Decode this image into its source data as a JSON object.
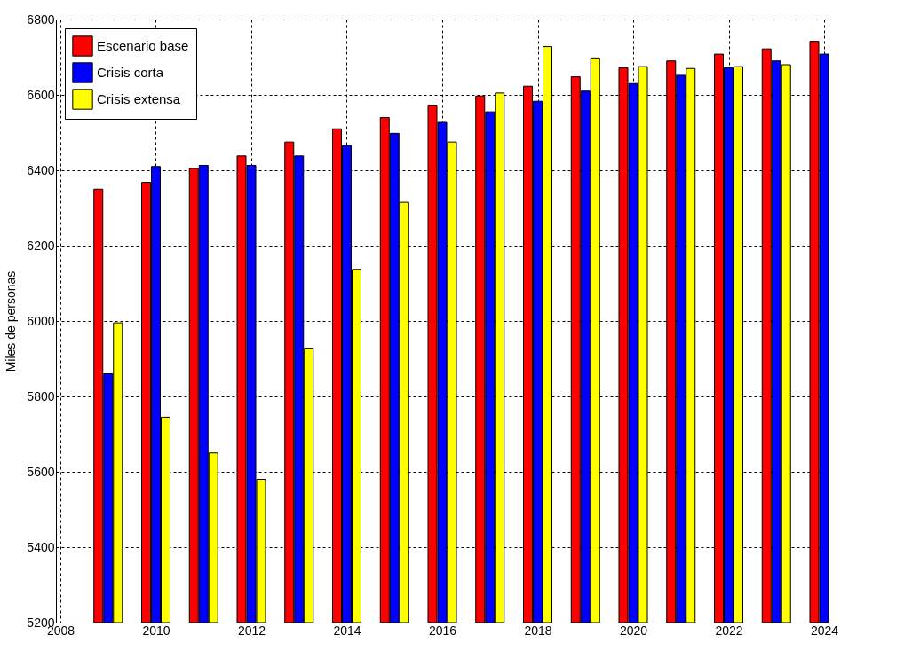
{
  "chart_data": {
    "type": "bar",
    "ylabel": "Miles de personas",
    "x": [
      2009,
      2010,
      2011,
      2012,
      2013,
      2014,
      2015,
      2016,
      2017,
      2018,
      2019,
      2020,
      2021,
      2022,
      2023,
      2024
    ],
    "series": [
      {
        "name": "Escenario base",
        "color": "#ff0000",
        "values": [
          6350,
          6368,
          6405,
          6438,
          6475,
          6510,
          6540,
          6573,
          6597,
          6623,
          6648,
          6672,
          6690,
          6708,
          6722,
          6742
        ]
      },
      {
        "name": "Crisis corta",
        "color": "#0000ff",
        "values": [
          5860,
          6410,
          6413,
          6413,
          6438,
          6465,
          6498,
          6527,
          6555,
          6583,
          6610,
          6630,
          6652,
          6672,
          6690,
          6708
        ]
      },
      {
        "name": "Crisis extensa",
        "color": "#ffff00",
        "values": [
          5995,
          5745,
          5650,
          5580,
          5928,
          6137,
          6315,
          6475,
          6605,
          6728,
          6698,
          6675,
          6670,
          6675,
          6680,
          null
        ]
      }
    ],
    "xlim": [
      2008,
      2024
    ],
    "xticks": [
      2008,
      2010,
      2012,
      2014,
      2016,
      2018,
      2020,
      2022,
      2024
    ],
    "ylim": [
      5200,
      6800
    ],
    "yticks": [
      5200,
      5400,
      5600,
      5800,
      6000,
      6200,
      6400,
      6600,
      6800
    ],
    "grid": true,
    "legend": "top left"
  }
}
